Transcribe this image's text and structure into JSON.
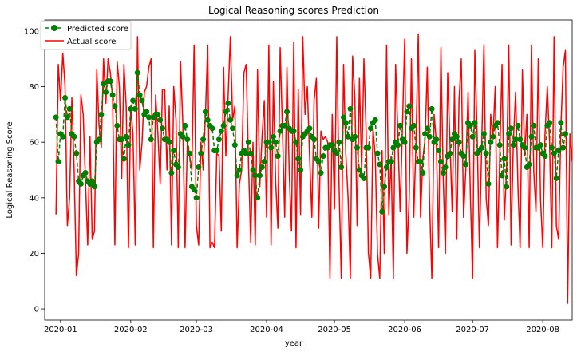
{
  "chart_data": {
    "type": "line",
    "title": "Logical Reasoning scores Prediction",
    "xlabel": "year",
    "ylabel": "Logical Reasoning Score",
    "x_axis_type": "date",
    "xlim": [
      "2019-12-25",
      "2020-08-14"
    ],
    "ylim": [
      -4,
      104
    ],
    "x_ticks": [
      "2020-01",
      "2020-02",
      "2020-03",
      "2020-04",
      "2020-05",
      "2020-06",
      "2020-07",
      "2020-08"
    ],
    "y_ticks": [
      0,
      20,
      40,
      60,
      80,
      100
    ],
    "grid": false,
    "legend_position": "top-left",
    "series": [
      {
        "name": "Predicted score",
        "color": "#008000",
        "style": "dashed-with-circle-markers",
        "start_date": "2019-12-30",
        "values": [
          69,
          53,
          63,
          62,
          76,
          69,
          72,
          63,
          62,
          56,
          46,
          45,
          48,
          49,
          46,
          45,
          46,
          44,
          60,
          61,
          70,
          81,
          78,
          82,
          82,
          77,
          73,
          66,
          61,
          61,
          54,
          62,
          59,
          72,
          75,
          72,
          85,
          77,
          75,
          70,
          71,
          69,
          61,
          69,
          70,
          70,
          68,
          65,
          61,
          61,
          60,
          49,
          57,
          52,
          51,
          63,
          62,
          66,
          61,
          56,
          44,
          43,
          40,
          51,
          56,
          61,
          71,
          68,
          66,
          65,
          57,
          57,
          61,
          64,
          66,
          71,
          74,
          68,
          65,
          59,
          48,
          50,
          56,
          57,
          56,
          60,
          56,
          50,
          48,
          40,
          48,
          51,
          53,
          60,
          60,
          58,
          62,
          60,
          55,
          64,
          66,
          66,
          71,
          65,
          64,
          64,
          60,
          54,
          50,
          62,
          63,
          64,
          65,
          62,
          61,
          54,
          53,
          49,
          55,
          58,
          58,
          59,
          59,
          57,
          56,
          60,
          51,
          69,
          67,
          62,
          72,
          61,
          62,
          58,
          50,
          48,
          47,
          58,
          58,
          65,
          67,
          68,
          56,
          52,
          35,
          44,
          51,
          53,
          53,
          58,
          60,
          59,
          66,
          61,
          60,
          71,
          73,
          65,
          66,
          58,
          53,
          53,
          49,
          63,
          65,
          62,
          72,
          60,
          61,
          57,
          53,
          49,
          51,
          55,
          56,
          61,
          63,
          62,
          60,
          56,
          55,
          52,
          67,
          66,
          62,
          67,
          56,
          57,
          58,
          63,
          56,
          45,
          60,
          62,
          66,
          67,
          59,
          48,
          54,
          44,
          63,
          65,
          59,
          61,
          66,
          61,
          59,
          58,
          51,
          52,
          62,
          66,
          58,
          58,
          59,
          56,
          55,
          66,
          67,
          58,
          56,
          47,
          57,
          67,
          58,
          63
        ]
      },
      {
        "name": "Actual score",
        "color": "#ff0000",
        "style": "solid",
        "start_date": "2019-12-30",
        "values": [
          34,
          88,
          75,
          92,
          80,
          30,
          40,
          76,
          50,
          12,
          20,
          77,
          70,
          46,
          23,
          62,
          25,
          28,
          86,
          66,
          58,
          90,
          74,
          90,
          85,
          76,
          23,
          89,
          80,
          47,
          88,
          73,
          22,
          73,
          63,
          23,
          98,
          50,
          60,
          78,
          80,
          87,
          90,
          22,
          77,
          63,
          45,
          79,
          79,
          50,
          73,
          23,
          80,
          68,
          22,
          89,
          67,
          22,
          60,
          55,
          50,
          95,
          30,
          23,
          60,
          50,
          70,
          95,
          22,
          24,
          22,
          56,
          55,
          28,
          87,
          55,
          76,
          98,
          68,
          73,
          22,
          45,
          50,
          85,
          88,
          53,
          24,
          60,
          23,
          86,
          44,
          62,
          75,
          33,
          95,
          23,
          82,
          46,
          29,
          94,
          65,
          33,
          87,
          49,
          28,
          96,
          22,
          79,
          34,
          98,
          70,
          80,
          55,
          33,
          75,
          83,
          29,
          64,
          61,
          62,
          60,
          11,
          70,
          36,
          98,
          45,
          11,
          88,
          56,
          40,
          11,
          91,
          76,
          30,
          83,
          49,
          90,
          63,
          20,
          11,
          65,
          55,
          20,
          11,
          57,
          20,
          95,
          34,
          55,
          11,
          88,
          63,
          35,
          65,
          97,
          20,
          40,
          90,
          33,
          60,
          99,
          33,
          54,
          61,
          87,
          38,
          11,
          70,
          60,
          22,
          94,
          48,
          20,
          85,
          60,
          35,
          80,
          25,
          75,
          90,
          33,
          50,
          78,
          42,
          11,
          93,
          63,
          22,
          58,
          95,
          40,
          30,
          70,
          62,
          80,
          22,
          55,
          88,
          32,
          50,
          95,
          23,
          60,
          78,
          45,
          22,
          86,
          55,
          70,
          22,
          95,
          50,
          35,
          90,
          40,
          22,
          63,
          80,
          60,
          22,
          98,
          30,
          25,
          65,
          87,
          93,
          2,
          63,
          53,
          95
        ]
      }
    ]
  }
}
